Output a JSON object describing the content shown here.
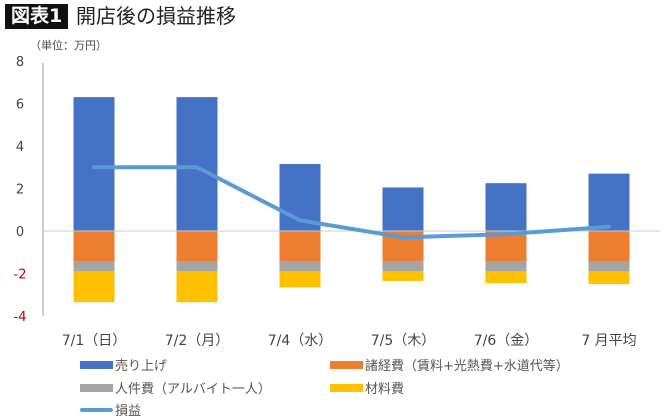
{
  "header": {
    "badge": "図表1",
    "title": "開店後の損益推移",
    "unit": "（単位：万円）"
  },
  "chart_data": {
    "type": "bar",
    "stacked": true,
    "title": "開店後の損益推移",
    "ylabel": "（単位：万円）",
    "ylim": [
      -4,
      8
    ],
    "yticks": [
      8,
      6,
      4,
      2,
      0,
      -2,
      -4
    ],
    "negative_tick_color": "#c00000",
    "grid": false,
    "legend_position": "bottom",
    "categories": [
      "7/1（日）",
      "7/2（月）",
      "7/4（水）",
      "7/5（木）",
      "7/6（金）",
      "7 月平均"
    ],
    "series": [
      {
        "name": "売り上げ",
        "type": "bar",
        "color": "#4472c4",
        "values": [
          6.3,
          6.3,
          3.15,
          2.05,
          2.25,
          2.7
        ]
      },
      {
        "name": "諸経費（賃料+光熱費+水道代等）",
        "type": "bar",
        "color": "#ed7d31",
        "values": [
          -1.45,
          -1.45,
          -1.45,
          -1.45,
          -1.45,
          -1.45
        ]
      },
      {
        "name": "人件費（アルバイト一人）",
        "type": "bar",
        "color": "#a5a5a5",
        "values": [
          -0.45,
          -0.45,
          -0.45,
          -0.45,
          -0.45,
          -0.45
        ]
      },
      {
        "name": "材料費",
        "type": "bar",
        "color": "#ffc000",
        "values": [
          -1.45,
          -1.45,
          -0.75,
          -0.45,
          -0.55,
          -0.6
        ]
      },
      {
        "name": "損益",
        "type": "line",
        "color": "#5b9bd5",
        "values": [
          3.0,
          3.0,
          0.5,
          -0.3,
          -0.15,
          0.2
        ]
      }
    ]
  }
}
